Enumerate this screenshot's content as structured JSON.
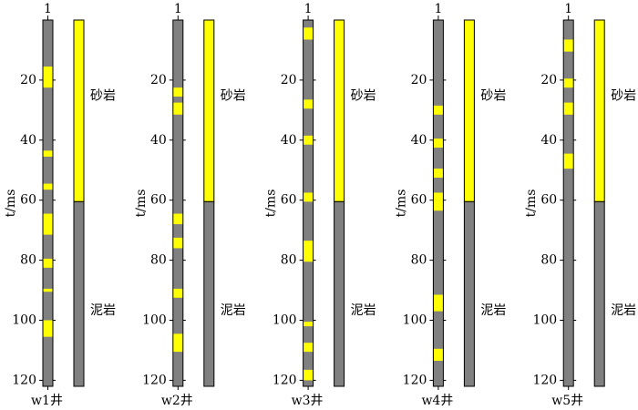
{
  "chart_data": [
    {
      "type": "well-log",
      "xlabel": "w1井",
      "ylabel": "t/ms",
      "column_label": "1",
      "ylim": [
        0,
        122
      ],
      "yticks": [
        20,
        40,
        60,
        80,
        100,
        120
      ],
      "log_color": "#808080",
      "sand_color": "#ffff00",
      "sand_intervals": [
        [
          15.5,
          22.5
        ],
        [
          43.5,
          45.5
        ],
        [
          54.5,
          56.5
        ],
        [
          64.5,
          71.5
        ],
        [
          79.5,
          82.5
        ],
        [
          89.5,
          90.5
        ],
        [
          100,
          105.5
        ]
      ],
      "lithology": [
        {
          "name": "砂岩",
          "range": [
            0,
            60.5
          ],
          "color": "#ffff00"
        },
        {
          "name": "泥岩",
          "range": [
            60.5,
            122
          ],
          "color": "#808080"
        }
      ]
    },
    {
      "type": "well-log",
      "xlabel": "w2井",
      "ylabel": "t/ms",
      "column_label": "1",
      "ylim": [
        0,
        122
      ],
      "yticks": [
        20,
        40,
        60,
        80,
        100,
        120
      ],
      "log_color": "#808080",
      "sand_color": "#ffff00",
      "sand_intervals": [
        [
          22.5,
          25.5
        ],
        [
          27.5,
          31.5
        ],
        [
          64.5,
          68
        ],
        [
          72.5,
          76
        ],
        [
          89.5,
          92.5
        ],
        [
          104.5,
          110.5
        ]
      ],
      "lithology": [
        {
          "name": "砂岩",
          "range": [
            0,
            60.5
          ],
          "color": "#ffff00"
        },
        {
          "name": "泥岩",
          "range": [
            60.5,
            122
          ],
          "color": "#808080"
        }
      ]
    },
    {
      "type": "well-log",
      "xlabel": "w3井",
      "ylabel": "t/ms",
      "column_label": "1",
      "ylim": [
        0,
        122
      ],
      "yticks": [
        20,
        40,
        60,
        80,
        100,
        120
      ],
      "log_color": "#808080",
      "sand_color": "#ffff00",
      "sand_intervals": [
        [
          2.5,
          6.5
        ],
        [
          26.5,
          29.5
        ],
        [
          38.5,
          41.5
        ],
        [
          57.5,
          60.5
        ],
        [
          73.5,
          80.5
        ],
        [
          100.5,
          102
        ],
        [
          107.5,
          110.5
        ],
        [
          116.5,
          120
        ]
      ],
      "lithology": [
        {
          "name": "砂岩",
          "range": [
            0,
            60.5
          ],
          "color": "#ffff00"
        },
        {
          "name": "泥岩",
          "range": [
            60.5,
            122
          ],
          "color": "#808080"
        }
      ]
    },
    {
      "type": "well-log",
      "xlabel": "w4井",
      "ylabel": "t/ms",
      "column_label": "1",
      "ylim": [
        0,
        122
      ],
      "yticks": [
        20,
        40,
        60,
        80,
        100,
        120
      ],
      "log_color": "#808080",
      "sand_color": "#ffff00",
      "sand_intervals": [
        [
          28.5,
          31.5
        ],
        [
          39.5,
          42.5
        ],
        [
          49.5,
          52.5
        ],
        [
          57.5,
          63.5
        ],
        [
          91.5,
          97
        ],
        [
          109.5,
          113.5
        ]
      ],
      "lithology": [
        {
          "name": "砂岩",
          "range": [
            0,
            60.5
          ],
          "color": "#ffff00"
        },
        {
          "name": "泥岩",
          "range": [
            60.5,
            122
          ],
          "color": "#808080"
        }
      ]
    },
    {
      "type": "well-log",
      "xlabel": "w5井",
      "ylabel": "t/ms",
      "column_label": "1",
      "ylim": [
        0,
        122
      ],
      "yticks": [
        20,
        40,
        60,
        80,
        100,
        120
      ],
      "log_color": "#808080",
      "sand_color": "#ffff00",
      "sand_intervals": [
        [
          6.5,
          10.5
        ],
        [
          19.5,
          22.5
        ],
        [
          27.5,
          31.5
        ],
        [
          44.5,
          49.5
        ]
      ],
      "lithology": [
        {
          "name": "砂岩",
          "range": [
            0,
            60.5
          ],
          "color": "#ffff00"
        },
        {
          "name": "泥岩",
          "range": [
            60.5,
            122
          ],
          "color": "#808080"
        }
      ]
    }
  ]
}
